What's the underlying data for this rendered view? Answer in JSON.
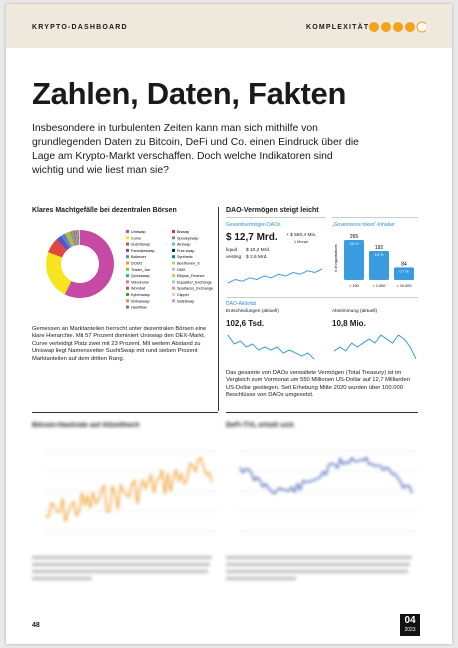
{
  "header": {
    "section": "KRYPTO-DASHBOARD",
    "complexity_label": "KOMPLEXITÄT"
  },
  "title": "Zahlen, Daten, Fakten",
  "intro": "Insbesondere in turbulenten Zeiten kann man sich mithilfe von grundlegenden Daten zu Bitcoin, DeFi und Co. einen Eindruck über die Lage am Krypto-Markt verschaffen. Doch welche Indikatoren sind wichtig und wie liest man sie?",
  "dex": {
    "title": "Klares Machtgefälle bei dezentralen Börsen",
    "segments": [
      {
        "name": "Uniswap",
        "color": "#c64aa3",
        "value": 57
      },
      {
        "name": "Curve",
        "color": "#f6e51e",
        "value": 23
      },
      {
        "name": "SushiSwap",
        "color": "#e0483f",
        "value": 7
      },
      {
        "name": "Pancakeswap",
        "color": "#6a4cc2",
        "value": 3
      },
      {
        "name": "Balancer",
        "color": "#3b8fd6",
        "value": 2
      },
      {
        "name": "DODO",
        "color": "#f19a2b",
        "value": 1.5
      },
      {
        "name": "Trader_Joe",
        "color": "#8bc34a",
        "value": 1
      },
      {
        "name": "Quickswap",
        "color": "#2ab3a6",
        "value": 0.8
      },
      {
        "name": "Velodrome",
        "color": "#e86aa8",
        "value": 0.6
      },
      {
        "name": "Wombat",
        "color": "#9e6b3b",
        "value": 0.5
      },
      {
        "name": "Kyberswap",
        "color": "#35a04f",
        "value": 0.4
      },
      {
        "name": "Shibaswap",
        "color": "#ff7f50",
        "value": 0.3
      },
      {
        "name": "Hashflow",
        "color": "#7b7b7b",
        "value": 0.3
      },
      {
        "name": "Biswap",
        "color": "#d62f6f",
        "value": 0.3
      },
      {
        "name": "Spookyswap",
        "color": "#8e7cc3",
        "value": 0.2
      },
      {
        "name": "Airswap",
        "color": "#4fc3f7",
        "value": 0.2
      },
      {
        "name": "Frax swap",
        "color": "#222222",
        "value": 0.2
      },
      {
        "name": "Synthetix",
        "color": "#00897b",
        "value": 0.2
      },
      {
        "name": "Beethoven_X",
        "color": "#aed581",
        "value": 0.1
      },
      {
        "name": "DMX",
        "color": "#bdbdbd",
        "value": 0.1
      },
      {
        "name": "Ellipsis_Finance",
        "color": "#ffb74d",
        "value": 0.1
      },
      {
        "name": "Equalizer_Exchange",
        "color": "#90caf9",
        "value": 0.1
      },
      {
        "name": "Spartacus_Exchange",
        "color": "#f48fb1",
        "value": 0.1
      },
      {
        "name": "Clipper",
        "color": "#c5e1a5",
        "value": 0.1
      },
      {
        "name": "SafeSwap",
        "color": "#ce93d8",
        "value": 0.1
      }
    ],
    "text": "Gemessen an Marktanteilen herrscht unter dezentralen Börsen eine klare Hierarchie. Mit 57 Prozent dominiert Uniswap den DEX-Markt. Curve verteidigt Platz zwei mit 23 Prozent. Mit weitem Abstand zu Uniswap liegt Namensvetter SushiSwap mit rund sieben Prozent Marktanteilen auf dem dritten Rang."
  },
  "dao": {
    "title": "DAO-Vermögen steigt leicht",
    "assets": {
      "label": "Gesamtvermögen DAOs",
      "total": "$ 12,7 Mrd.",
      "change": "+ $ 550,4 Mio.",
      "change_period": "1 Monat",
      "liquid_label": "liquid",
      "liquid": "$ 10,2 Mrd.",
      "vesting_label": "vesting",
      "vesting": "$ 2,6 Mrd.",
      "trend": [
        11.9,
        12.1,
        12.0,
        12.2,
        12.1,
        12.3,
        12.2,
        12.4,
        12.3,
        12.5,
        12.4,
        12.6,
        12.5,
        12.7
      ]
    },
    "holders": {
      "label": "„Governance token“-Inhaber",
      "axis_label": "# of organisations",
      "bars": [
        {
          "category": "> 100",
          "value": 265,
          "share": "3,5 %"
        },
        {
          "category": "> 1.000",
          "value": 192,
          "share": "2,6 %"
        },
        {
          "category": "> 10.000",
          "value": 84,
          "share": "0,7 %"
        }
      ]
    },
    "activity": {
      "label": "DAO-Aktivität",
      "decisions_label": "Entscheidungen (aktuell)",
      "decisions": "102,6 Tsd.",
      "decisions_trend": [
        9,
        6,
        7,
        5,
        6,
        4,
        5,
        4,
        5,
        3,
        4,
        3,
        2,
        3,
        1
      ],
      "votes_label": "Abstimmung (aktuell)",
      "votes": "10,8 Mio.",
      "votes_trend": [
        4,
        5,
        4,
        6,
        5,
        6,
        7,
        6,
        8,
        7,
        6,
        8,
        7,
        5,
        2
      ]
    },
    "text": "Das gesamte von DAOs verwaltete Vermögen (Total Treasury) ist im Vergleich zum Vormonat um 550 Millionen US-Dollar auf 12,7 Milliarden US-Dollar gestiegen. Seit Erhebung Mitte 2020 wurden über 100.000 Beschlüsse von DAOs umgesetzt."
  },
  "hashrate": {
    "title": "Bitcoin-Hashrate auf Allzeithoch"
  },
  "tvl": {
    "title": "DeFi-TVL erholt sich"
  },
  "footer": {
    "page": "48",
    "issue": "04",
    "year": "2023"
  }
}
